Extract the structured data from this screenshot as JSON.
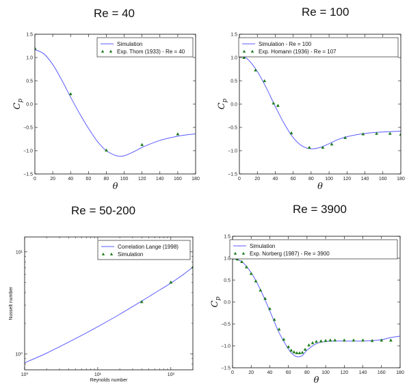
{
  "colors": {
    "line": "#5a5aff",
    "marker": "#1a7a1a"
  },
  "chart_data": [
    {
      "type": "line",
      "title": "Re = 40",
      "xlabel": "θ",
      "ylabel": "C_p",
      "xlim": [
        0,
        180
      ],
      "ylim": [
        -1.5,
        1.5
      ],
      "xscale": "linear",
      "yscale": "linear",
      "xticks": [
        0,
        20,
        40,
        60,
        80,
        100,
        120,
        140,
        160,
        180
      ],
      "yticks": [
        -1.5,
        -1.0,
        -0.5,
        0.0,
        0.5,
        1.0,
        1.5
      ],
      "xtick_labels": [
        "0",
        "20",
        "40",
        "60",
        "80",
        "100",
        "120",
        "140",
        "160",
        "180"
      ],
      "ytick_labels": [
        "−1.5",
        "−1.0",
        "−0.5",
        "0.0",
        "0.5",
        "1.0",
        "1.5"
      ],
      "legend": "top-right",
      "series": [
        {
          "name": "Simulation",
          "kind": "line",
          "x": [
            0,
            10,
            20,
            30,
            40,
            50,
            60,
            70,
            80,
            90,
            95,
            100,
            110,
            120,
            130,
            140,
            150,
            160,
            170,
            180
          ],
          "y": [
            1.17,
            1.08,
            0.85,
            0.52,
            0.15,
            -0.2,
            -0.52,
            -0.8,
            -1.0,
            -1.1,
            -1.12,
            -1.11,
            -1.03,
            -0.93,
            -0.85,
            -0.78,
            -0.73,
            -0.69,
            -0.66,
            -0.64
          ]
        },
        {
          "name": "Exp. Thom (1933) - Re = 40",
          "kind": "marker",
          "x": [
            0,
            40,
            80,
            120,
            160
          ],
          "y": [
            1.2,
            0.22,
            -0.99,
            -0.87,
            -0.64
          ]
        }
      ]
    },
    {
      "type": "line",
      "title": "Re = 100",
      "xlabel": "θ",
      "ylabel": "C_p",
      "xlim": [
        0,
        180
      ],
      "ylim": [
        -1.5,
        1.5
      ],
      "xscale": "linear",
      "yscale": "linear",
      "xticks": [
        0,
        20,
        40,
        60,
        80,
        100,
        120,
        140,
        160,
        180
      ],
      "yticks": [
        -1.5,
        -1.0,
        -0.5,
        0.0,
        0.5,
        1.0,
        1.5
      ],
      "xtick_labels": [
        "0",
        "20",
        "40",
        "60",
        "80",
        "100",
        "120",
        "140",
        "160",
        "180"
      ],
      "ytick_labels": [
        "−1.5",
        "−1.0",
        "−0.5",
        "0.0",
        "0.5",
        "1.0",
        "1.5"
      ],
      "legend": "top-right",
      "series": [
        {
          "name": "Simulation - Re = 100",
          "kind": "line",
          "x": [
            0,
            10,
            20,
            30,
            40,
            50,
            60,
            70,
            80,
            90,
            100,
            110,
            120,
            130,
            140,
            150,
            160,
            170,
            180
          ],
          "y": [
            1.07,
            0.95,
            0.7,
            0.35,
            -0.05,
            -0.42,
            -0.72,
            -0.9,
            -0.96,
            -0.93,
            -0.85,
            -0.76,
            -0.7,
            -0.66,
            -0.63,
            -0.61,
            -0.6,
            -0.59,
            -0.58
          ]
        },
        {
          "name": "Exp. Homann (1936) - Re = 107",
          "kind": "marker",
          "x": [
            0,
            5,
            18,
            28,
            38,
            43,
            58,
            78,
            93,
            103,
            118,
            138,
            153,
            168,
            180
          ],
          "y": [
            1.06,
            1.0,
            0.73,
            0.5,
            0.02,
            -0.03,
            -0.62,
            -0.93,
            -0.93,
            -0.86,
            -0.72,
            -0.64,
            -0.63,
            -0.63,
            -0.65
          ]
        }
      ]
    },
    {
      "type": "line",
      "title": "Re = 50-200",
      "xlabel": "Reynolds number",
      "ylabel": "Nusselt number",
      "xlim": [
        1,
        200
      ],
      "ylim": [
        0.7,
        14
      ],
      "xscale": "log",
      "yscale": "log",
      "xticks": [
        1,
        10,
        100
      ],
      "yticks": [
        1,
        10
      ],
      "xtick_labels": [
        "10⁰",
        "10¹",
        "10²"
      ],
      "ytick_labels": [
        "10⁰",
        "10¹"
      ],
      "legend": "top-right",
      "series": [
        {
          "name": "Correlation Lange (1998)",
          "kind": "line",
          "x": [
            1,
            2,
            5,
            10,
            20,
            40,
            60,
            100,
            150,
            200
          ],
          "y": [
            0.82,
            1.02,
            1.42,
            1.85,
            2.45,
            3.3,
            3.95,
            4.95,
            6.05,
            7.1
          ]
        },
        {
          "name": "Simulation",
          "kind": "marker",
          "x": [
            40,
            100,
            200
          ],
          "y": [
            3.25,
            5.05,
            7.1
          ]
        }
      ]
    },
    {
      "type": "line",
      "title": "Re = 3900",
      "xlabel": "θ",
      "ylabel": "C_p",
      "xlim": [
        0,
        180
      ],
      "ylim": [
        -1.5,
        1.5
      ],
      "xscale": "linear",
      "yscale": "linear",
      "xticks": [
        0,
        20,
        40,
        60,
        80,
        100,
        120,
        140,
        160,
        180
      ],
      "yticks": [
        -1.5,
        -1.0,
        -0.5,
        0.0,
        0.5,
        1.0,
        1.5
      ],
      "xtick_labels": [
        "0",
        "20",
        "40",
        "60",
        "80",
        "100",
        "120",
        "140",
        "160",
        "180"
      ],
      "ytick_labels": [
        "−1.5",
        "−1.0",
        "−0.5",
        "0.0",
        "0.5",
        "1.0",
        "1.5"
      ],
      "legend": "top-right",
      "series": [
        {
          "name": "Simulation",
          "kind": "line",
          "x": [
            0,
            10,
            20,
            30,
            40,
            50,
            60,
            65,
            70,
            75,
            80,
            90,
            100,
            110,
            120,
            130,
            140,
            150,
            160,
            170,
            180
          ],
          "y": [
            1.0,
            0.92,
            0.67,
            0.28,
            -0.2,
            -0.7,
            -1.07,
            -1.2,
            -1.25,
            -1.22,
            -1.1,
            -0.95,
            -0.9,
            -0.89,
            -0.89,
            -0.89,
            -0.89,
            -0.88,
            -0.86,
            -0.81,
            -0.78
          ]
        },
        {
          "name": "Exp. Norberg (1987) - Re = 3900",
          "kind": "marker",
          "x": [
            0,
            5,
            10,
            15,
            20,
            25,
            30,
            35,
            40,
            45,
            50,
            55,
            60,
            63,
            66,
            69,
            72,
            75,
            78,
            82,
            86,
            90,
            95,
            100,
            105,
            110,
            120,
            130,
            140,
            150,
            160,
            170
          ],
          "y": [
            1.0,
            0.98,
            0.92,
            0.8,
            0.65,
            0.48,
            0.27,
            0.08,
            -0.15,
            -0.4,
            -0.62,
            -0.85,
            -1.02,
            -1.1,
            -1.14,
            -1.16,
            -1.16,
            -1.15,
            -1.08,
            -0.98,
            -0.93,
            -0.9,
            -0.89,
            -0.88,
            -0.87,
            -0.87,
            -0.87,
            -0.87,
            -0.87,
            -0.88,
            -0.87,
            -0.87
          ]
        }
      ]
    }
  ]
}
